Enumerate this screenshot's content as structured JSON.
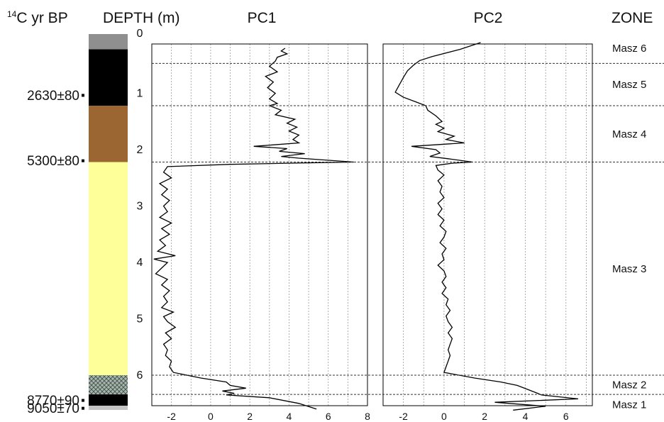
{
  "headers": {
    "age_sup": "14",
    "age_rest": "C yr BP",
    "depth": "DEPTH (m)",
    "pc1": "PC1",
    "pc2": "PC2",
    "zone": "ZONE"
  },
  "ages": [
    {
      "label": "2630±80",
      "depth": 0.93
    },
    {
      "label": "5300±80",
      "depth": 2.09
    },
    {
      "label": "8770±90",
      "depth": 6.34
    },
    {
      "label": "9050±70",
      "depth": 6.48
    }
  ],
  "depth_labels": [
    "0",
    "1",
    "2",
    "3",
    "4",
    "5",
    "6"
  ],
  "lithology": [
    {
      "top": 0.0,
      "bottom": 0.12,
      "color": "#8f8f8f",
      "pattern": "solid"
    },
    {
      "top": 0.12,
      "bottom": 1.12,
      "color": "#000000",
      "pattern": "solid"
    },
    {
      "top": 1.12,
      "bottom": 2.12,
      "color": "#9c6633",
      "pattern": "solid"
    },
    {
      "top": 2.12,
      "bottom": 5.9,
      "color": "#ffff99",
      "pattern": "solid"
    },
    {
      "top": 5.9,
      "bottom": 6.24,
      "color": "#a7b7ad",
      "pattern": "crosshatch"
    },
    {
      "top": 6.24,
      "bottom": 6.44,
      "color": "#000000",
      "pattern": "solid"
    },
    {
      "top": 6.44,
      "bottom": 6.55,
      "color": "#c4c4c4",
      "pattern": "solid"
    }
  ],
  "zones": [
    {
      "name": "Masz 6",
      "top": 0.0,
      "bottom": 0.37
    },
    {
      "name": "Masz 5",
      "top": 0.37,
      "bottom": 1.12
    },
    {
      "name": "Masz 4",
      "top": 1.12,
      "bottom": 2.12
    },
    {
      "name": "Masz 3",
      "top": 2.12,
      "bottom": 5.9
    },
    {
      "name": "Masz 2",
      "top": 5.9,
      "bottom": 6.24
    },
    {
      "name": "Masz 1",
      "top": 6.24,
      "bottom": 6.55
    }
  ],
  "chart_data": [
    {
      "type": "line",
      "title": "PC1",
      "orientation": "vertical-depth",
      "ylabel": "DEPTH (m)",
      "ylim": [
        0,
        6.55
      ],
      "xlim": [
        -3,
        8
      ],
      "xticks": [
        -2,
        0,
        2,
        4,
        6,
        8
      ],
      "grid": true,
      "points": [
        {
          "x": 3.8,
          "y": 0.1
        },
        {
          "x": 3.6,
          "y": 0.15
        },
        {
          "x": 3.9,
          "y": 0.2
        },
        {
          "x": 3.4,
          "y": 0.26
        },
        {
          "x": 3.3,
          "y": 0.33
        },
        {
          "x": 3.0,
          "y": 0.42
        },
        {
          "x": 3.4,
          "y": 0.52
        },
        {
          "x": 2.8,
          "y": 0.6
        },
        {
          "x": 3.2,
          "y": 0.7
        },
        {
          "x": 2.9,
          "y": 0.8
        },
        {
          "x": 3.3,
          "y": 0.9
        },
        {
          "x": 3.0,
          "y": 1.0
        },
        {
          "x": 3.4,
          "y": 1.08
        },
        {
          "x": 3.0,
          "y": 1.12
        },
        {
          "x": 3.6,
          "y": 1.2
        },
        {
          "x": 3.3,
          "y": 1.28
        },
        {
          "x": 4.3,
          "y": 1.36
        },
        {
          "x": 3.9,
          "y": 1.43
        },
        {
          "x": 4.4,
          "y": 1.5
        },
        {
          "x": 4.0,
          "y": 1.57
        },
        {
          "x": 4.5,
          "y": 1.64
        },
        {
          "x": 4.2,
          "y": 1.72
        },
        {
          "x": 4.5,
          "y": 1.78
        },
        {
          "x": 2.2,
          "y": 1.84
        },
        {
          "x": 3.9,
          "y": 1.88
        },
        {
          "x": 3.5,
          "y": 1.93
        },
        {
          "x": 4.8,
          "y": 1.97
        },
        {
          "x": 3.6,
          "y": 2.02
        },
        {
          "x": 4.5,
          "y": 2.05
        },
        {
          "x": 7.3,
          "y": 2.12
        },
        {
          "x": 4.0,
          "y": 2.14
        },
        {
          "x": 1.0,
          "y": 2.16
        },
        {
          "x": -2.2,
          "y": 2.2
        },
        {
          "x": -2.4,
          "y": 2.3
        },
        {
          "x": -2.0,
          "y": 2.4
        },
        {
          "x": -2.6,
          "y": 2.5
        },
        {
          "x": -2.2,
          "y": 2.6
        },
        {
          "x": -2.5,
          "y": 2.7
        },
        {
          "x": -2.1,
          "y": 2.8
        },
        {
          "x": -2.4,
          "y": 2.9
        },
        {
          "x": -2.2,
          "y": 3.0
        },
        {
          "x": -2.6,
          "y": 3.1
        },
        {
          "x": -2.0,
          "y": 3.2
        },
        {
          "x": -2.5,
          "y": 3.3
        },
        {
          "x": -2.1,
          "y": 3.4
        },
        {
          "x": -2.6,
          "y": 3.5
        },
        {
          "x": -2.3,
          "y": 3.6
        },
        {
          "x": -2.7,
          "y": 3.7
        },
        {
          "x": -1.8,
          "y": 3.78
        },
        {
          "x": -2.9,
          "y": 3.84
        },
        {
          "x": -2.2,
          "y": 3.9
        },
        {
          "x": -2.5,
          "y": 4.0
        },
        {
          "x": -2.8,
          "y": 4.1
        },
        {
          "x": -2.2,
          "y": 4.2
        },
        {
          "x": -2.5,
          "y": 4.3
        },
        {
          "x": -2.1,
          "y": 4.4
        },
        {
          "x": -2.4,
          "y": 4.5
        },
        {
          "x": -2.2,
          "y": 4.6
        },
        {
          "x": -2.5,
          "y": 4.7
        },
        {
          "x": -1.9,
          "y": 4.78
        },
        {
          "x": -2.4,
          "y": 4.86
        },
        {
          "x": -2.2,
          "y": 4.95
        },
        {
          "x": -1.8,
          "y": 5.05
        },
        {
          "x": -2.3,
          "y": 5.15
        },
        {
          "x": -2.0,
          "y": 5.25
        },
        {
          "x": -2.4,
          "y": 5.35
        },
        {
          "x": -2.2,
          "y": 5.45
        },
        {
          "x": -2.3,
          "y": 5.55
        },
        {
          "x": -2.0,
          "y": 5.65
        },
        {
          "x": -2.1,
          "y": 5.75
        },
        {
          "x": -1.9,
          "y": 5.85
        },
        {
          "x": -0.5,
          "y": 5.95
        },
        {
          "x": 0.8,
          "y": 6.02
        },
        {
          "x": 1.0,
          "y": 6.08
        },
        {
          "x": 1.8,
          "y": 6.13
        },
        {
          "x": 0.6,
          "y": 6.18
        },
        {
          "x": 1.2,
          "y": 6.22
        },
        {
          "x": 0.8,
          "y": 6.25
        },
        {
          "x": 3.0,
          "y": 6.3
        },
        {
          "x": 4.5,
          "y": 6.4
        },
        {
          "x": 5.4,
          "y": 6.5
        }
      ]
    },
    {
      "type": "line",
      "title": "PC2",
      "orientation": "vertical-depth",
      "ylabel": "DEPTH (m)",
      "ylim": [
        0,
        6.55
      ],
      "xlim": [
        -3,
        7.3
      ],
      "xticks": [
        -2,
        0,
        2,
        4,
        6
      ],
      "grid": true,
      "points": [
        {
          "x": 1.8,
          "y": 0.0
        },
        {
          "x": 0.8,
          "y": 0.12
        },
        {
          "x": -0.6,
          "y": 0.25
        },
        {
          "x": -1.2,
          "y": 0.32
        },
        {
          "x": -1.5,
          "y": 0.4
        },
        {
          "x": -1.8,
          "y": 0.5
        },
        {
          "x": -2.0,
          "y": 0.62
        },
        {
          "x": -2.2,
          "y": 0.75
        },
        {
          "x": -2.4,
          "y": 0.88
        },
        {
          "x": -2.0,
          "y": 0.97
        },
        {
          "x": -1.4,
          "y": 1.05
        },
        {
          "x": -0.9,
          "y": 1.12
        },
        {
          "x": -0.8,
          "y": 1.2
        },
        {
          "x": -0.4,
          "y": 1.3
        },
        {
          "x": -0.1,
          "y": 1.4
        },
        {
          "x": -0.4,
          "y": 1.45
        },
        {
          "x": 0.0,
          "y": 1.52
        },
        {
          "x": -0.3,
          "y": 1.58
        },
        {
          "x": 0.5,
          "y": 1.66
        },
        {
          "x": 0.1,
          "y": 1.72
        },
        {
          "x": 1.0,
          "y": 1.78
        },
        {
          "x": -1.6,
          "y": 1.84
        },
        {
          "x": -0.4,
          "y": 1.9
        },
        {
          "x": -0.2,
          "y": 1.96
        },
        {
          "x": -0.7,
          "y": 2.02
        },
        {
          "x": 0.2,
          "y": 2.06
        },
        {
          "x": 1.4,
          "y": 2.12
        },
        {
          "x": 0.4,
          "y": 2.14
        },
        {
          "x": -0.4,
          "y": 2.18
        },
        {
          "x": -0.3,
          "y": 2.26
        },
        {
          "x": 0.0,
          "y": 2.35
        },
        {
          "x": -0.3,
          "y": 2.45
        },
        {
          "x": -0.1,
          "y": 2.55
        },
        {
          "x": -0.2,
          "y": 2.65
        },
        {
          "x": 0.0,
          "y": 2.75
        },
        {
          "x": -0.3,
          "y": 2.85
        },
        {
          "x": -0.1,
          "y": 2.95
        },
        {
          "x": -0.3,
          "y": 3.05
        },
        {
          "x": 0.0,
          "y": 3.15
        },
        {
          "x": -0.2,
          "y": 3.25
        },
        {
          "x": 0.1,
          "y": 3.35
        },
        {
          "x": 0.0,
          "y": 3.45
        },
        {
          "x": -0.2,
          "y": 3.55
        },
        {
          "x": 0.1,
          "y": 3.65
        },
        {
          "x": -0.1,
          "y": 3.75
        },
        {
          "x": 0.0,
          "y": 3.85
        },
        {
          "x": -0.3,
          "y": 3.95
        },
        {
          "x": 0.0,
          "y": 4.05
        },
        {
          "x": 0.1,
          "y": 4.15
        },
        {
          "x": -0.1,
          "y": 4.25
        },
        {
          "x": 0.1,
          "y": 4.35
        },
        {
          "x": -0.1,
          "y": 4.45
        },
        {
          "x": 0.2,
          "y": 4.55
        },
        {
          "x": 0.1,
          "y": 4.65
        },
        {
          "x": 0.3,
          "y": 4.75
        },
        {
          "x": 0.1,
          "y": 4.85
        },
        {
          "x": 0.2,
          "y": 4.95
        },
        {
          "x": 0.4,
          "y": 5.05
        },
        {
          "x": 0.2,
          "y": 5.15
        },
        {
          "x": 0.4,
          "y": 5.25
        },
        {
          "x": 0.3,
          "y": 5.35
        },
        {
          "x": 0.2,
          "y": 5.45
        },
        {
          "x": 0.3,
          "y": 5.55
        },
        {
          "x": 0.2,
          "y": 5.65
        },
        {
          "x": 0.1,
          "y": 5.75
        },
        {
          "x": 0.0,
          "y": 5.85
        },
        {
          "x": 1.5,
          "y": 5.95
        },
        {
          "x": 2.8,
          "y": 6.02
        },
        {
          "x": 3.6,
          "y": 6.08
        },
        {
          "x": 4.1,
          "y": 6.15
        },
        {
          "x": 4.6,
          "y": 6.22
        },
        {
          "x": 4.8,
          "y": 6.25
        },
        {
          "x": 6.6,
          "y": 6.32
        },
        {
          "x": 2.5,
          "y": 6.38
        },
        {
          "x": 5.0,
          "y": 6.45
        },
        {
          "x": 3.4,
          "y": 6.52
        }
      ]
    }
  ]
}
